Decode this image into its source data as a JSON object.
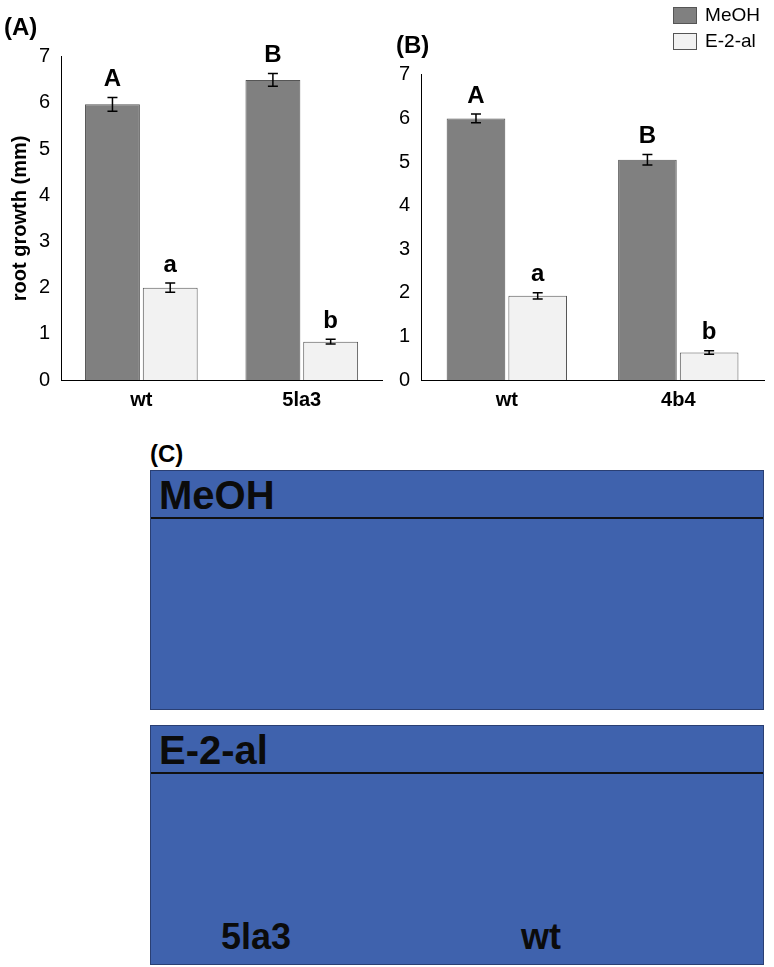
{
  "chart_data": [
    {
      "type": "bar",
      "title": "(A)",
      "y_label": "root growth (mm)",
      "categories": [
        "wt",
        "5la3"
      ],
      "series": [
        {
          "name": "MeOH",
          "color": "#808080",
          "values": [
            5.97,
            6.5
          ],
          "errors": [
            0.15,
            0.14
          ],
          "annotations": [
            "A",
            "B"
          ]
        },
        {
          "name": "E-2-al",
          "color": "#f2f2f2",
          "values": [
            2.0,
            0.83
          ],
          "errors": [
            0.1,
            0.05
          ],
          "annotations": [
            "a",
            "b"
          ]
        }
      ],
      "ylim": [
        0,
        7
      ],
      "yticks": [
        0,
        1,
        2,
        3,
        4,
        5,
        6,
        7
      ],
      "grid": false
    },
    {
      "type": "bar",
      "title": "(B)",
      "categories": [
        "wt",
        "4b4"
      ],
      "series": [
        {
          "name": "MeOH",
          "color": "#808080",
          "values": [
            6.0,
            5.05
          ],
          "errors": [
            0.1,
            0.12
          ],
          "annotations": [
            "A",
            "B"
          ]
        },
        {
          "name": "E-2-al",
          "color": "#f2f2f2",
          "values": [
            1.93,
            0.63
          ],
          "errors": [
            0.07,
            0.04
          ],
          "annotations": [
            "a",
            "b"
          ]
        }
      ],
      "ylim": [
        0,
        7
      ],
      "yticks": [
        0,
        1,
        2,
        3,
        4,
        5,
        6,
        7
      ],
      "grid": false,
      "legend": "upper right"
    }
  ],
  "photo": {
    "title": "(C)",
    "panels": [
      "MeOH",
      "E-2-al"
    ],
    "labels": [
      "5la3",
      "wt"
    ]
  }
}
